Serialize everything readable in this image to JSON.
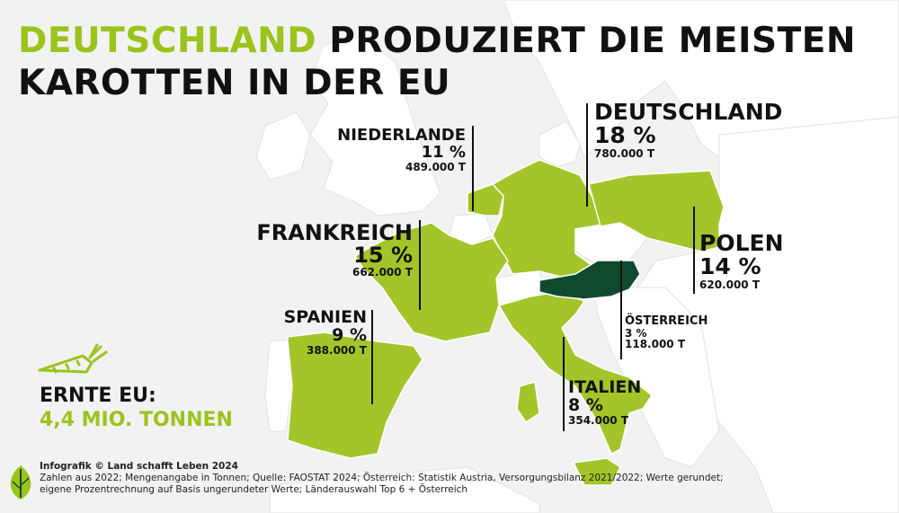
{
  "title": {
    "highlight": "DEUTSCHLAND",
    "rest_line1": "PRODUZIERT DIE MEISTEN",
    "line2": "KAROTTEN IN DER EU"
  },
  "countries": {
    "deutschland": {
      "name": "DEUTSCHLAND",
      "pct": "18 %",
      "tons": "780.000 T"
    },
    "niederlande": {
      "name": "NIEDERLANDE",
      "pct": "11 %",
      "tons": "489.000 T"
    },
    "frankreich": {
      "name": "FRANKREICH",
      "pct": "15 %",
      "tons": "662.000 T"
    },
    "polen": {
      "name": "POLEN",
      "pct": "14 %",
      "tons": "620.000 T"
    },
    "spanien": {
      "name": "SPANIEN",
      "pct": "9 %",
      "tons": "388.000 T"
    },
    "oesterreich": {
      "name": "ÖSTERREICH",
      "pct": "3 %",
      "tons": "118.000 T"
    },
    "italien": {
      "name": "ITALIEN",
      "pct": "8 %",
      "tons": "354.000 T"
    }
  },
  "harvest": {
    "label": "ERNTE EU:",
    "value": "4,4 MIO. TONNEN"
  },
  "footer": {
    "credit": "Infografik © Land schafft Leben 2024",
    "line1": "Zahlen aus 2022; Mengenangabe in Tonnen; Quelle: FAOSTAT 2024; Österreich: Statistik Austria, Versorgungsbilanz 2021/2022; Werte gerundet;",
    "line2": "eigene Prozentrechnung auf Basis ungerundeter Werte; Länderauswahl Top 6 + Österreich"
  },
  "colors": {
    "highlight": "#a3c52a",
    "austria": "#0f4a2e",
    "land": "#ffffff",
    "sea": "#f2f2f2",
    "text": "#111111",
    "accent_text": "#9bc31c"
  },
  "icons": [
    "carrot-icon",
    "leaf-logo-icon"
  ]
}
